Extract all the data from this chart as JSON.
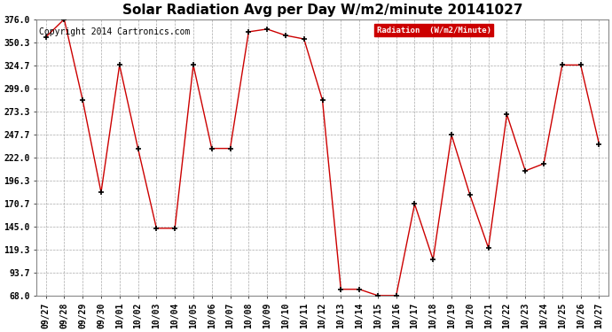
{
  "title": "Solar Radiation Avg per Day W/m2/minute 20141027",
  "copyright": "Copyright 2014 Cartronics.com",
  "legend_label": "Radiation  (W/m2/Minute)",
  "x_labels": [
    "09/27",
    "09/28",
    "09/29",
    "09/30",
    "10/01",
    "10/02",
    "10/03",
    "10/04",
    "10/05",
    "10/06",
    "10/07",
    "10/08",
    "10/09",
    "10/10",
    "10/11",
    "10/12",
    "10/13",
    "10/14",
    "10/15",
    "10/16",
    "10/17",
    "10/18",
    "10/19",
    "10/20",
    "10/21",
    "10/22",
    "10/23",
    "10/24",
    "10/25",
    "10/26",
    "10/27"
  ],
  "y_values": [
    356.0,
    376.0,
    286.0,
    183.0,
    325.0,
    232.0,
    143.0,
    143.0,
    325.0,
    232.0,
    232.0,
    362.0,
    365.0,
    358.0,
    354.0,
    286.0,
    75.0,
    75.0,
    68.0,
    68.0,
    170.0,
    108.0,
    247.0,
    180.0,
    121.0,
    270.0,
    207.0,
    215.0,
    325.0,
    325.0,
    237.0
  ],
  "ylim_min": 68.0,
  "ylim_max": 376.0,
  "yticks": [
    68.0,
    93.7,
    119.3,
    145.0,
    170.7,
    196.3,
    222.0,
    247.7,
    273.3,
    299.0,
    324.7,
    350.3,
    376.0
  ],
  "line_color": "#cc0000",
  "marker_color": "#000000",
  "bg_color": "#ffffff",
  "grid_color": "#aaaaaa",
  "legend_bg": "#cc0000",
  "legend_text_color": "#ffffff",
  "title_fontsize": 11,
  "tick_fontsize": 7,
  "copyright_fontsize": 7
}
